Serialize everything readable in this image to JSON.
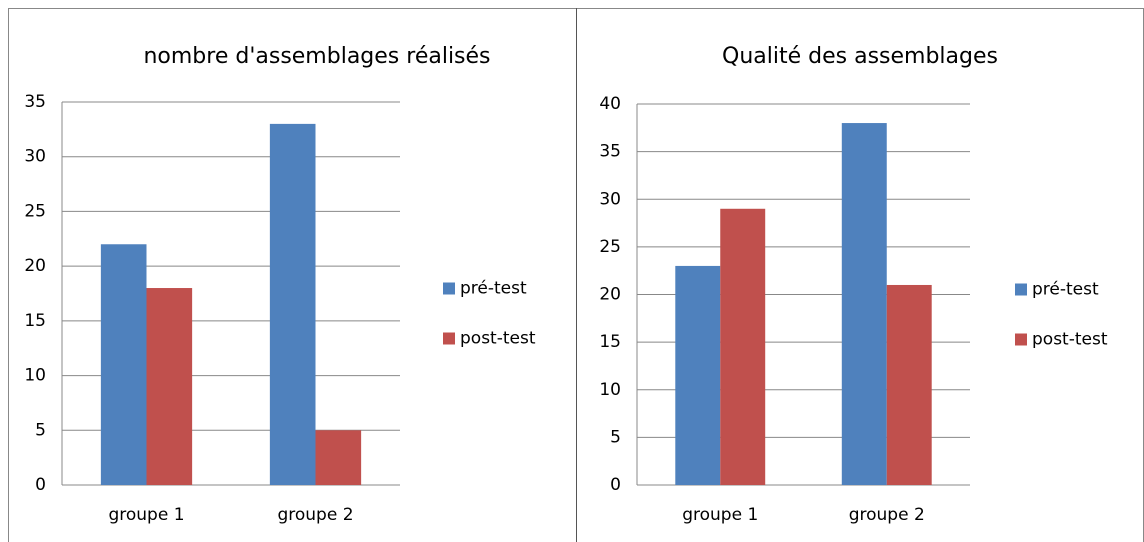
{
  "chart_data": [
    {
      "type": "bar",
      "title": "nombre d'assemblages réalisés",
      "categories": [
        "groupe 1",
        "groupe 2"
      ],
      "series": [
        {
          "name": "pré-test",
          "color": "#4f81bd",
          "values": [
            22,
            33
          ]
        },
        {
          "name": "post-test",
          "color": "#c0504d",
          "values": [
            18,
            5
          ]
        }
      ],
      "ylim": [
        0,
        35
      ],
      "yticks": [
        0,
        5,
        10,
        15,
        20,
        25,
        30,
        35
      ],
      "grid": true,
      "legend": "right"
    },
    {
      "type": "bar",
      "title": "Qualité des assemblages",
      "categories": [
        "groupe 1",
        "groupe 2"
      ],
      "series": [
        {
          "name": "pré-test",
          "color": "#4f81bd",
          "values": [
            23,
            38
          ]
        },
        {
          "name": "post-test",
          "color": "#c0504d",
          "values": [
            29,
            21
          ]
        }
      ],
      "ylim": [
        0,
        40
      ],
      "yticks": [
        0,
        5,
        10,
        15,
        20,
        25,
        30,
        35,
        40
      ],
      "grid": true,
      "legend": "right"
    }
  ]
}
